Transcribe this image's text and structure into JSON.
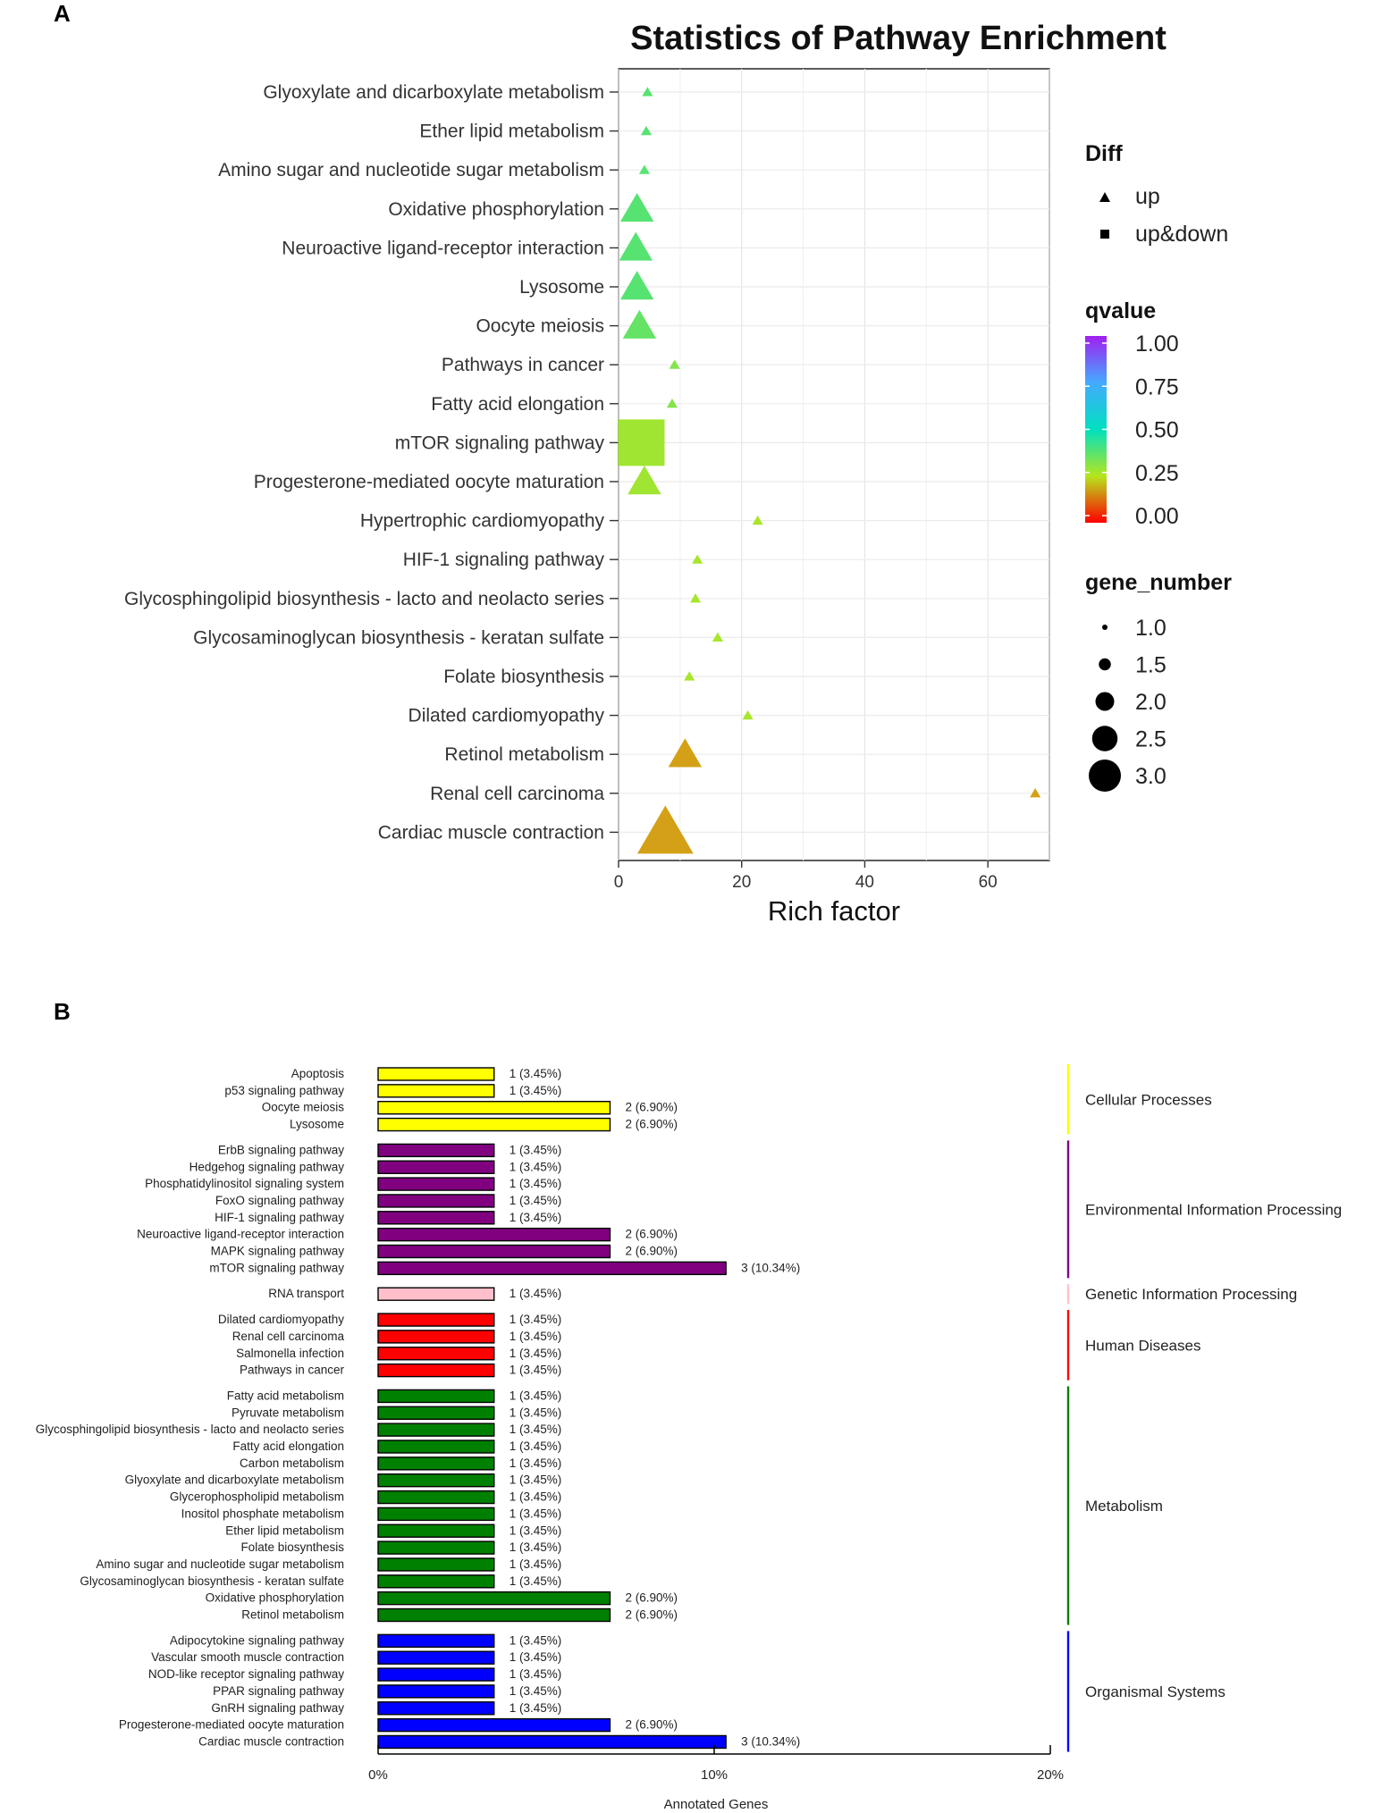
{
  "panel_a_label": "A",
  "panel_b_label": "B",
  "chart_data": [
    {
      "type": "scatter",
      "title": "Statistics of Pathway Enrichment",
      "xlabel": "Rich factor",
      "ylabel": "",
      "xlim": [
        0,
        70
      ],
      "xticks": [
        "0",
        "20",
        "40",
        "60"
      ],
      "categories": [
        "Glyoxylate and dicarboxylate metabolism",
        "Ether lipid metabolism",
        "Amino sugar and nucleotide sugar metabolism",
        "Oxidative phosphorylation",
        "Neuroactive ligand-receptor interaction",
        "Lysosome",
        "Oocyte meiosis",
        "Pathways in cancer",
        "Fatty acid elongation",
        "mTOR signaling pathway",
        "Progesterone-mediated oocyte maturation",
        "Hypertrophic cardiomyopathy",
        "HIF-1 signaling pathway",
        "Glycosphingolipid biosynthesis - lacto and neolacto series",
        "Glycosaminoglycan biosynthesis - keratan sulfate",
        "Folate biosynthesis",
        "Dilated cardiomyopathy",
        "Retinol metabolism",
        "Renal cell carcinoma",
        "Cardiac muscle contraction"
      ],
      "points": [
        {
          "x": 4.7,
          "gene_number": 1,
          "qvalue": 0.38,
          "diff": "up"
        },
        {
          "x": 4.5,
          "gene_number": 1,
          "qvalue": 0.38,
          "diff": "up"
        },
        {
          "x": 4.2,
          "gene_number": 1,
          "qvalue": 0.38,
          "diff": "up"
        },
        {
          "x": 3.0,
          "gene_number": 2,
          "qvalue": 0.38,
          "diff": "up"
        },
        {
          "x": 2.8,
          "gene_number": 2,
          "qvalue": 0.38,
          "diff": "up"
        },
        {
          "x": 3.0,
          "gene_number": 2,
          "qvalue": 0.38,
          "diff": "up"
        },
        {
          "x": 3.4,
          "gene_number": 2,
          "qvalue": 0.36,
          "diff": "up"
        },
        {
          "x": 9.1,
          "gene_number": 1,
          "qvalue": 0.32,
          "diff": "up"
        },
        {
          "x": 8.7,
          "gene_number": 1,
          "qvalue": 0.32,
          "diff": "up"
        },
        {
          "x": 3.7,
          "gene_number": 3,
          "qvalue": 0.28,
          "diff": "up&down"
        },
        {
          "x": 4.2,
          "gene_number": 2,
          "qvalue": 0.28,
          "diff": "up"
        },
        {
          "x": 22.6,
          "gene_number": 1,
          "qvalue": 0.27,
          "diff": "up"
        },
        {
          "x": 12.8,
          "gene_number": 1,
          "qvalue": 0.27,
          "diff": "up"
        },
        {
          "x": 12.5,
          "gene_number": 1,
          "qvalue": 0.27,
          "diff": "up"
        },
        {
          "x": 16.1,
          "gene_number": 1,
          "qvalue": 0.27,
          "diff": "up"
        },
        {
          "x": 11.5,
          "gene_number": 1,
          "qvalue": 0.27,
          "diff": "up"
        },
        {
          "x": 21.0,
          "gene_number": 1,
          "qvalue": 0.27,
          "diff": "up"
        },
        {
          "x": 10.8,
          "gene_number": 2,
          "qvalue": 0.19,
          "diff": "up"
        },
        {
          "x": 67.7,
          "gene_number": 1,
          "qvalue": 0.19,
          "diff": "up"
        },
        {
          "x": 7.6,
          "gene_number": 3,
          "qvalue": 0.17,
          "diff": "up"
        }
      ],
      "legend": {
        "diff_title": "Diff",
        "diff_items": [
          "up",
          "up&down"
        ],
        "qvalue_title": "qvalue",
        "qvalue_ticks": [
          "1.00",
          "0.75",
          "0.50",
          "0.25",
          "0.00"
        ],
        "gene_title": "gene_number",
        "gene_items": [
          "1.0",
          "1.5",
          "2.0",
          "2.5",
          "3.0"
        ],
        "placement": "right"
      },
      "colors": {
        "low": "#ff0000",
        "q025": "#b5e61d",
        "mid": "#00d8d8",
        "high": "#a020f0",
        "gold": "#d4a017"
      }
    },
    {
      "type": "bar",
      "xlabel": "Annotated Genes",
      "xlim": [
        0,
        20
      ],
      "xticks": [
        "0%",
        "10%",
        "20%"
      ],
      "groups": [
        {
          "name": "Cellular Processes",
          "color": "#ffff00",
          "items": [
            {
              "label": "Apoptosis",
              "count": 1,
              "text": "1 (3.45%)"
            },
            {
              "label": "p53 signaling pathway",
              "count": 1,
              "text": "1 (3.45%)"
            },
            {
              "label": "Oocyte meiosis",
              "count": 2,
              "text": "2 (6.90%)"
            },
            {
              "label": "Lysosome",
              "count": 2,
              "text": "2 (6.90%)"
            }
          ]
        },
        {
          "name": "Environmental Information Processing",
          "color": "#800080",
          "items": [
            {
              "label": "ErbB signaling pathway",
              "count": 1,
              "text": "1 (3.45%)"
            },
            {
              "label": "Hedgehog signaling pathway",
              "count": 1,
              "text": "1 (3.45%)"
            },
            {
              "label": "Phosphatidylinositol signaling system",
              "count": 1,
              "text": "1 (3.45%)"
            },
            {
              "label": "FoxO signaling pathway",
              "count": 1,
              "text": "1 (3.45%)"
            },
            {
              "label": "HIF-1 signaling pathway",
              "count": 1,
              "text": "1 (3.45%)"
            },
            {
              "label": "Neuroactive ligand-receptor interaction",
              "count": 2,
              "text": "2 (6.90%)"
            },
            {
              "label": "MAPK signaling pathway",
              "count": 2,
              "text": "2 (6.90%)"
            },
            {
              "label": "mTOR signaling pathway",
              "count": 3,
              "text": "3 (10.34%)"
            }
          ]
        },
        {
          "name": "Genetic Information Processing",
          "color": "#ffc0cb",
          "items": [
            {
              "label": "RNA transport",
              "count": 1,
              "text": "1 (3.45%)"
            }
          ]
        },
        {
          "name": "Human Diseases",
          "color": "#ff0000",
          "items": [
            {
              "label": "Dilated cardiomyopathy",
              "count": 1,
              "text": "1 (3.45%)"
            },
            {
              "label": "Renal cell carcinoma",
              "count": 1,
              "text": "1 (3.45%)"
            },
            {
              "label": "Salmonella infection",
              "count": 1,
              "text": "1 (3.45%)"
            },
            {
              "label": "Pathways in cancer",
              "count": 1,
              "text": "1 (3.45%)"
            }
          ]
        },
        {
          "name": "Metabolism",
          "color": "#008000",
          "items": [
            {
              "label": "Fatty acid metabolism",
              "count": 1,
              "text": "1 (3.45%)"
            },
            {
              "label": "Pyruvate metabolism",
              "count": 1,
              "text": "1 (3.45%)"
            },
            {
              "label": "Glycosphingolipid biosynthesis - lacto and neolacto series",
              "count": 1,
              "text": "1 (3.45%)"
            },
            {
              "label": "Fatty acid elongation",
              "count": 1,
              "text": "1 (3.45%)"
            },
            {
              "label": "Carbon metabolism",
              "count": 1,
              "text": "1 (3.45%)"
            },
            {
              "label": "Glyoxylate and dicarboxylate metabolism",
              "count": 1,
              "text": "1 (3.45%)"
            },
            {
              "label": "Glycerophospholipid metabolism",
              "count": 1,
              "text": "1 (3.45%)"
            },
            {
              "label": "Inositol phosphate metabolism",
              "count": 1,
              "text": "1 (3.45%)"
            },
            {
              "label": "Ether lipid metabolism",
              "count": 1,
              "text": "1 (3.45%)"
            },
            {
              "label": "Folate biosynthesis",
              "count": 1,
              "text": "1 (3.45%)"
            },
            {
              "label": "Amino sugar and nucleotide sugar metabolism",
              "count": 1,
              "text": "1 (3.45%)"
            },
            {
              "label": "Glycosaminoglycan biosynthesis - keratan sulfate",
              "count": 1,
              "text": "1 (3.45%)"
            },
            {
              "label": "Oxidative phosphorylation",
              "count": 2,
              "text": "2 (6.90%)"
            },
            {
              "label": "Retinol metabolism",
              "count": 2,
              "text": "2 (6.90%)"
            }
          ]
        },
        {
          "name": "Organismal Systems",
          "color": "#0000ff",
          "items": [
            {
              "label": "Adipocytokine signaling pathway",
              "count": 1,
              "text": "1 (3.45%)"
            },
            {
              "label": "Vascular smooth muscle contraction",
              "count": 1,
              "text": "1 (3.45%)"
            },
            {
              "label": "NOD-like receptor signaling pathway",
              "count": 1,
              "text": "1 (3.45%)"
            },
            {
              "label": "PPAR signaling pathway",
              "count": 1,
              "text": "1 (3.45%)"
            },
            {
              "label": "GnRH signaling pathway",
              "count": 1,
              "text": "1 (3.45%)"
            },
            {
              "label": "Progesterone-mediated oocyte maturation",
              "count": 2,
              "text": "2 (6.90%)"
            },
            {
              "label": "Cardiac muscle contraction",
              "count": 3,
              "text": "3 (10.34%)"
            }
          ]
        }
      ]
    }
  ]
}
